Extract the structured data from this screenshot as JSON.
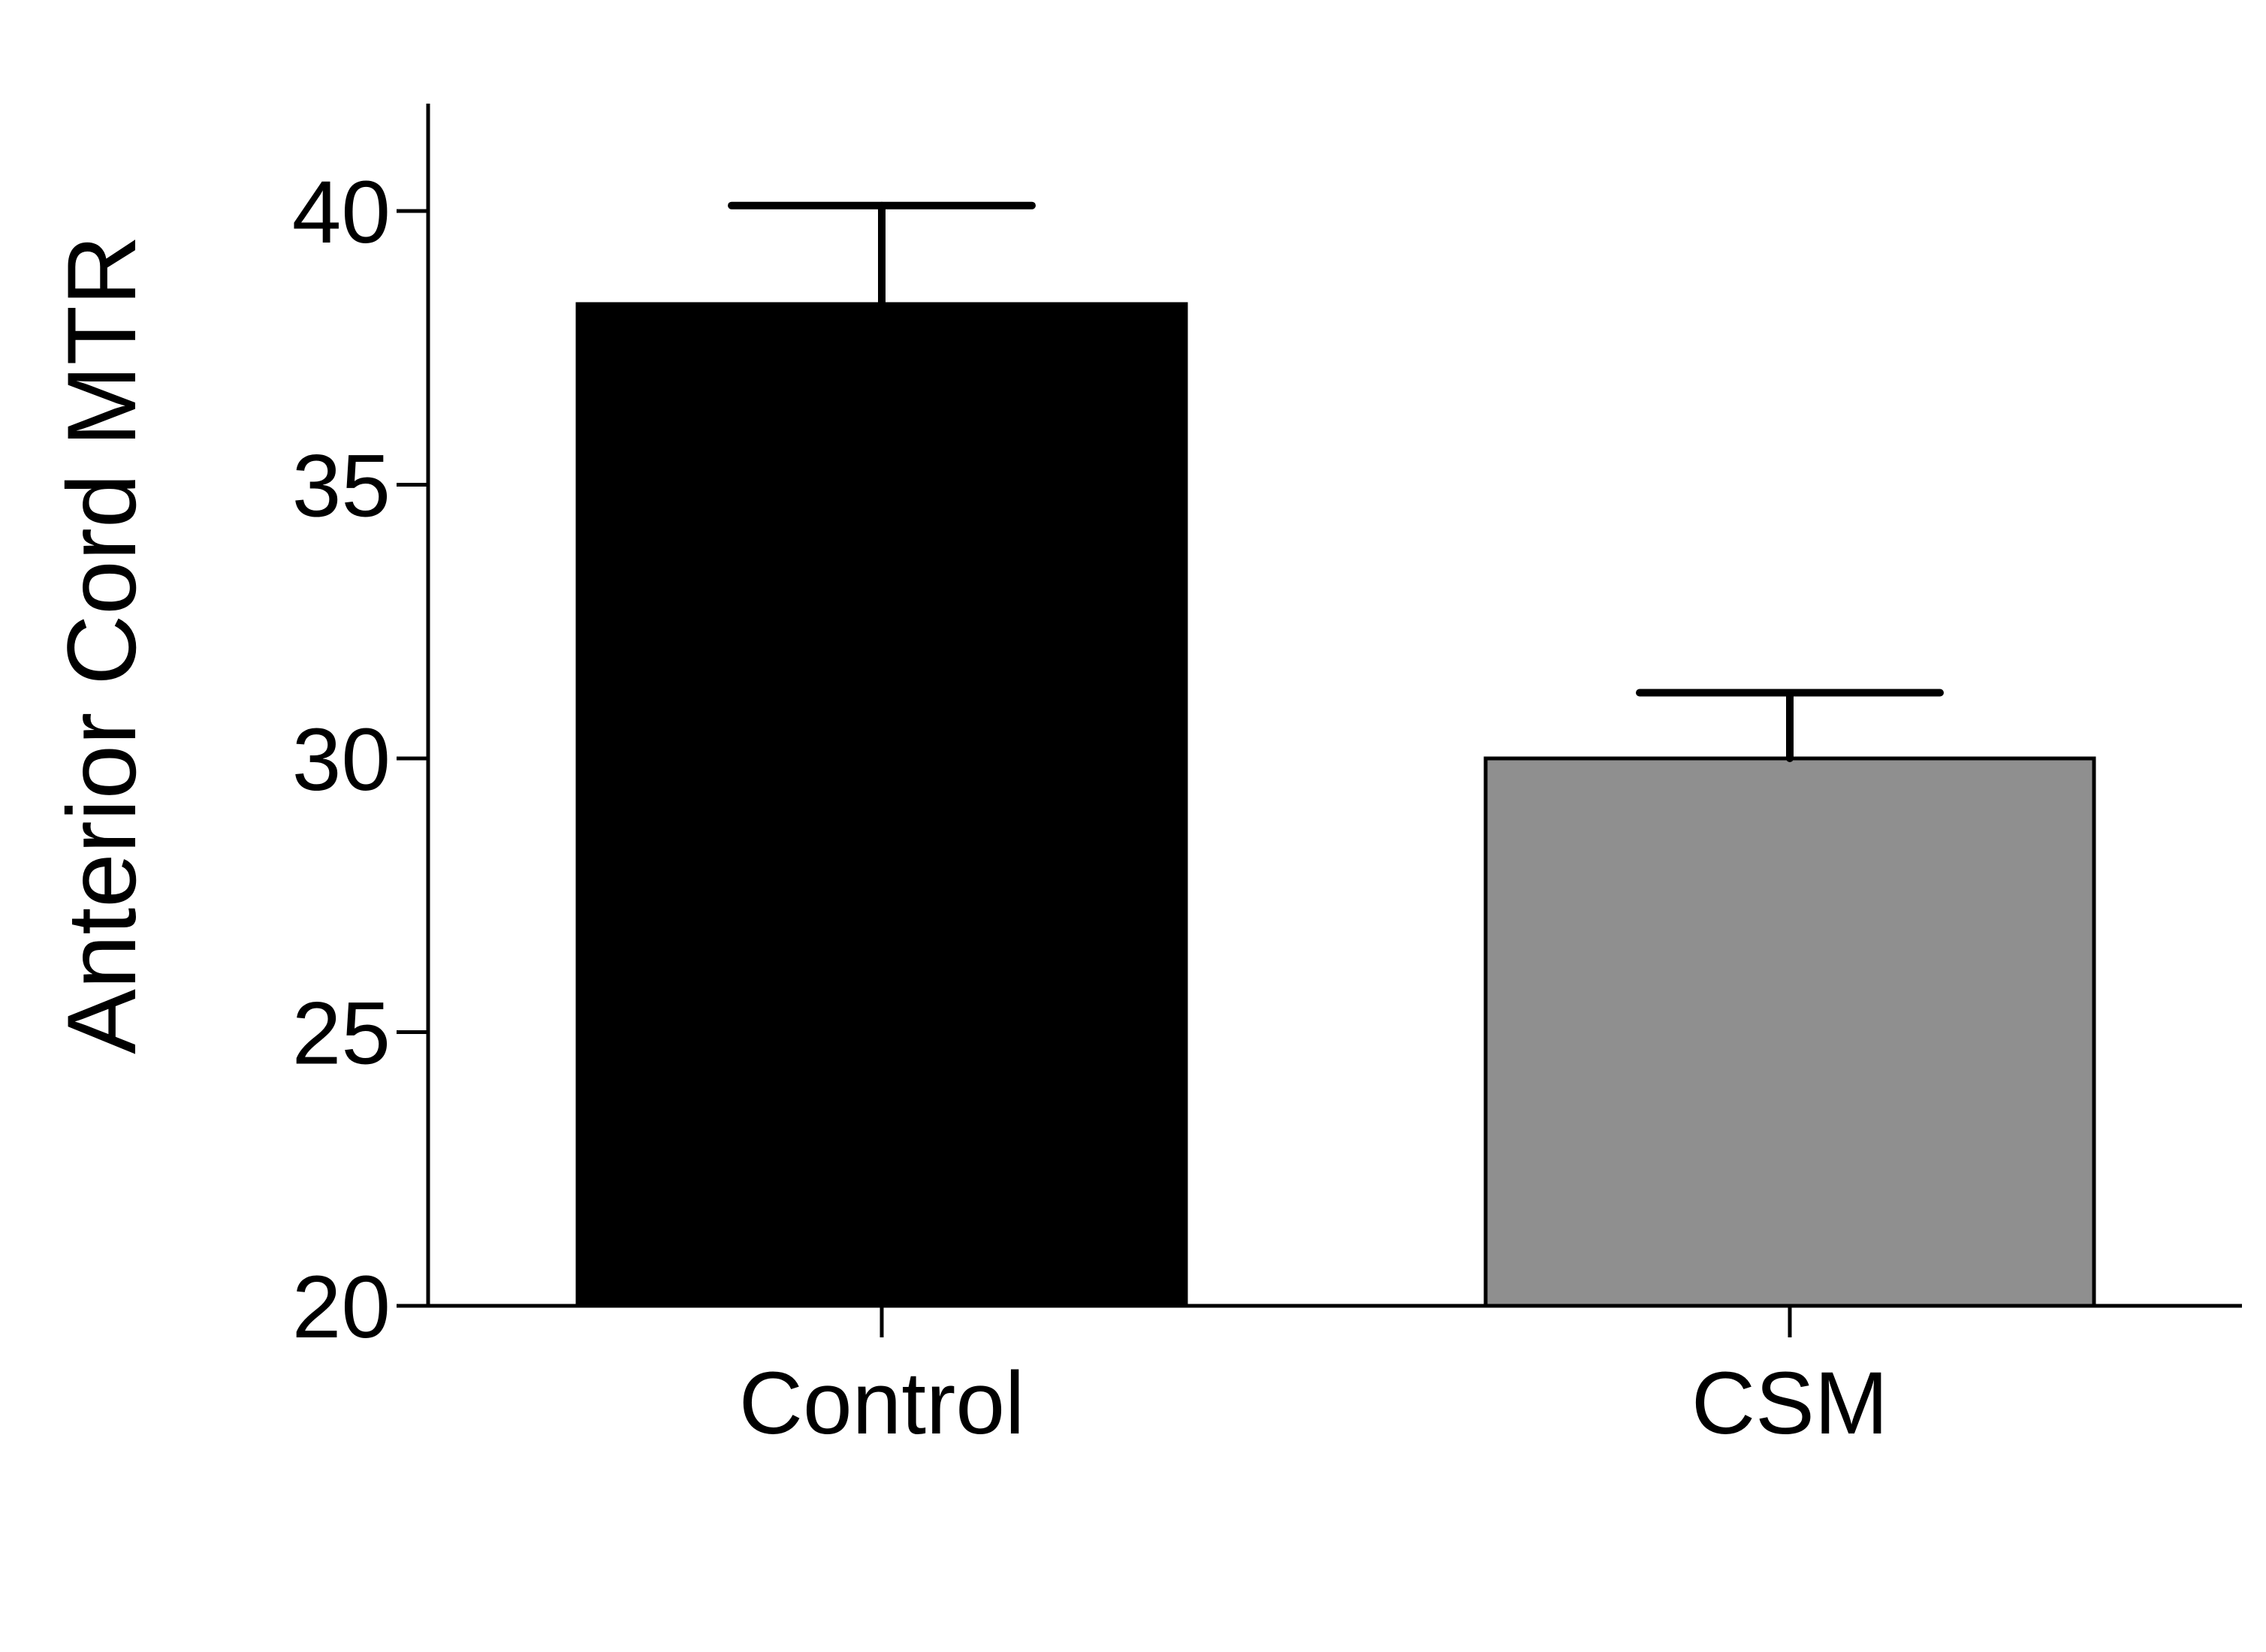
{
  "chart_data": {
    "type": "bar",
    "title": "",
    "xlabel": "",
    "ylabel": "Anterior Cord MTR",
    "categories": [
      "Control",
      "CSM"
    ],
    "values": [
      38.3,
      30.0
    ],
    "error_upper": [
      40.1,
      31.2
    ],
    "bar_colors": [
      "#000000",
      "#8f8f8f"
    ],
    "ylim": [
      20,
      42
    ],
    "yticks": [
      20,
      25,
      30,
      35,
      40
    ],
    "ytick_labels": [
      "20",
      "25",
      "30",
      "35",
      "40"
    ],
    "grid": false,
    "legend": "none"
  }
}
